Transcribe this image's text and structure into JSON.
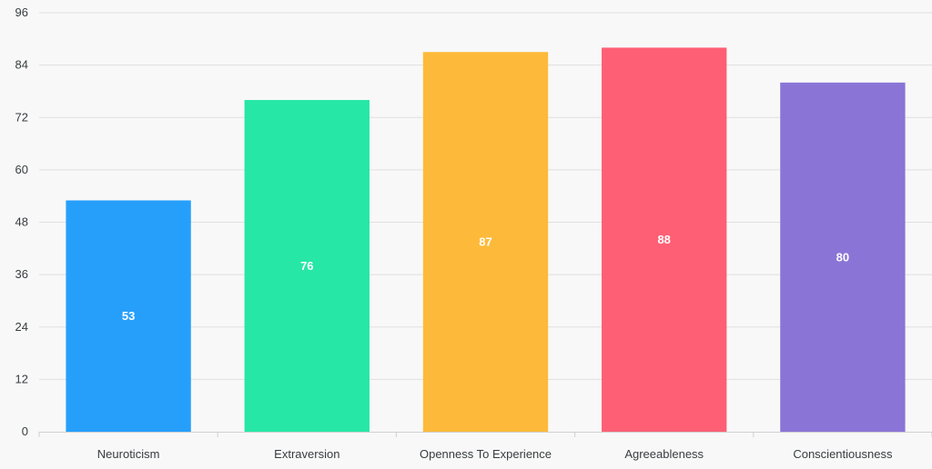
{
  "chart_data": {
    "type": "bar",
    "categories": [
      "Neuroticism",
      "Extraversion",
      "Openness To Experience",
      "Agreeableness",
      "Conscientiousness"
    ],
    "values": [
      53,
      76,
      87,
      88,
      80
    ],
    "bar_colors": [
      "#269ffb",
      "#26e7a5",
      "#fdba3a",
      "#fe5f75",
      "#8a75d7"
    ],
    "y_ticks": [
      0,
      12,
      24,
      36,
      48,
      60,
      72,
      84,
      96
    ],
    "ylim": [
      0,
      96
    ],
    "grid": true,
    "data_labels": true,
    "legend": "none",
    "title": "",
    "xlabel": "",
    "ylabel": ""
  }
}
